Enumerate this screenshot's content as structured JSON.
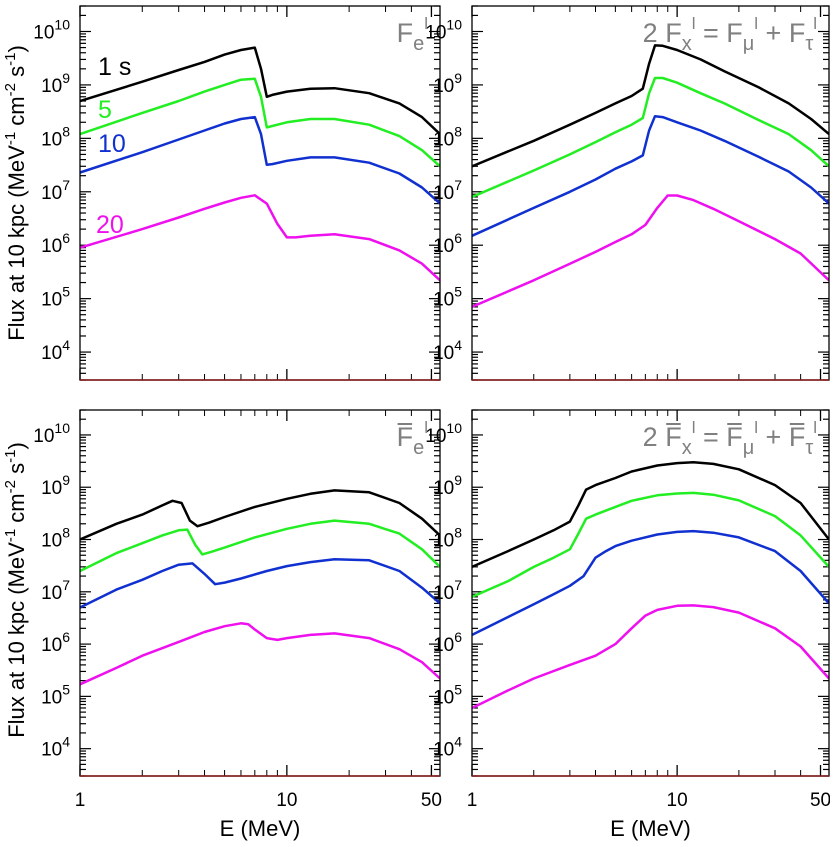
{
  "axes": {
    "ylabel_main": "Flux at 10 kpc (MeV",
    "ylabel_exp1": "-1",
    "ylabel_mid": " cm",
    "ylabel_exp2": "-2",
    "ylabel_s": " s",
    "ylabel_exp3": "-1",
    "ylabel_end": ")",
    "xlabel": "E (MeV)",
    "xticks": [
      "1",
      "10",
      "50"
    ],
    "ytick_base": "10",
    "ytick_exps": [
      "4",
      "5",
      "6",
      "7",
      "8",
      "9",
      "10"
    ]
  },
  "colors": {
    "1 s": "#000000",
    "5": "#22ee22",
    "10": "#1030d0",
    "20": "#ee10ee",
    "label_gray": "#808080",
    "baseline": "#8b1a1a"
  },
  "time_labels": [
    "1 s",
    "5",
    "10",
    "20"
  ],
  "chart_data": [
    {
      "type": "line",
      "panel": "top-left",
      "label_parts": [
        "F",
        "e",
        "l"
      ],
      "xscale": "log",
      "yscale": "log",
      "xlim": [
        1,
        55
      ],
      "ylim": [
        3000,
        30000000000
      ],
      "series": [
        {
          "name": "1 s",
          "x": [
            1,
            2,
            3,
            4,
            5,
            6,
            7,
            7.5,
            8,
            8.5,
            10,
            13,
            17,
            25,
            35,
            45,
            55
          ],
          "y": [
            500000000,
            1150000000,
            1900000000,
            2700000000,
            3700000000,
            4500000000,
            5000000000,
            2000000000,
            600000000,
            650000000,
            750000000,
            850000000,
            870000000,
            700000000,
            450000000,
            250000000,
            120000000
          ]
        },
        {
          "name": "5",
          "x": [
            1,
            2,
            3,
            4,
            5,
            6,
            7,
            7.5,
            8,
            8.5,
            10,
            13,
            17,
            25,
            35,
            45,
            55
          ],
          "y": [
            120000000,
            300000000,
            500000000,
            750000000,
            1000000000,
            1250000000,
            1300000000,
            600000000,
            160000000,
            170000000,
            200000000,
            230000000,
            230000000,
            180000000,
            110000000,
            60000000,
            30000000
          ]
        },
        {
          "name": "10",
          "x": [
            1,
            2,
            3,
            4,
            5,
            6,
            7,
            7.5,
            8,
            8.5,
            10,
            13,
            17,
            25,
            35,
            45,
            55
          ],
          "y": [
            23000000,
            55000000,
            95000000,
            140000000,
            190000000,
            230000000,
            250000000,
            120000000,
            32000000,
            33000000,
            38000000,
            44000000,
            44000000,
            35000000,
            22000000,
            12000000,
            6000000
          ]
        },
        {
          "name": "20",
          "x": [
            1,
            2,
            3,
            4,
            5,
            6,
            7,
            8,
            9,
            10,
            11,
            13,
            17,
            25,
            35,
            45,
            55
          ],
          "y": [
            900000,
            2000000,
            3300000,
            4800000,
            6300000,
            7700000,
            8600000,
            6000000,
            2500000,
            1400000,
            1400000,
            1500000,
            1600000,
            1300000,
            800000,
            450000,
            220000
          ]
        }
      ]
    },
    {
      "type": "line",
      "panel": "top-right",
      "label_parts": [
        "2 F",
        "x",
        "l",
        " = F",
        "μ",
        "l",
        " + F",
        "τ",
        "l"
      ],
      "xscale": "log",
      "yscale": "log",
      "xlim": [
        1,
        55
      ],
      "ylim": [
        3000,
        30000000000
      ],
      "series": [
        {
          "name": "1 s",
          "x": [
            1,
            2,
            3,
            4,
            5,
            6,
            6.8,
            7.3,
            7.8,
            8.5,
            10,
            13,
            17,
            25,
            35,
            45,
            55
          ],
          "y": [
            30000000,
            90000000,
            180000000,
            300000000,
            450000000,
            620000000,
            850000000,
            2500000000,
            5500000000,
            5400000000,
            4500000000,
            3000000000,
            1800000000,
            900000000,
            450000000,
            230000000,
            120000000
          ]
        },
        {
          "name": "5",
          "x": [
            1,
            2,
            3,
            4,
            5,
            6,
            6.8,
            7.3,
            7.8,
            8.5,
            10,
            13,
            17,
            25,
            35,
            45,
            55
          ],
          "y": [
            8000000,
            25000000,
            50000000,
            85000000,
            130000000,
            180000000,
            240000000,
            700000000,
            1350000000,
            1350000000,
            1100000000,
            700000000,
            450000000,
            220000000,
            120000000,
            60000000,
            30000000
          ]
        },
        {
          "name": "10",
          "x": [
            1,
            2,
            3,
            4,
            5,
            6,
            6.8,
            7.3,
            7.8,
            8.5,
            10,
            13,
            17,
            25,
            35,
            45,
            55
          ],
          "y": [
            1500000,
            5000000,
            10000000,
            17000000,
            27000000,
            37000000,
            48000000,
            140000000,
            260000000,
            250000000,
            200000000,
            140000000,
            90000000,
            45000000,
            24000000,
            12000000,
            6000000
          ]
        },
        {
          "name": "20",
          "x": [
            1,
            2,
            3,
            4,
            5,
            6,
            7,
            8,
            9,
            10,
            12,
            15,
            20,
            30,
            40,
            55
          ],
          "y": [
            70000,
            220000,
            450000,
            750000,
            1150000,
            1600000,
            2400000,
            5000000,
            8500000,
            8500000,
            7000000,
            4800000,
            2800000,
            1300000,
            700000,
            220000
          ]
        }
      ]
    },
    {
      "type": "line",
      "panel": "bottom-left",
      "label_parts": [
        "F",
        "e",
        "l"
      ],
      "label_bar": true,
      "xscale": "log",
      "yscale": "log",
      "xlim": [
        1,
        55
      ],
      "ylim": [
        3000,
        30000000000
      ],
      "series": [
        {
          "name": "1 s",
          "x": [
            1,
            1.5,
            2,
            2.5,
            2.8,
            3.1,
            3.4,
            3.7,
            4.2,
            5,
            7,
            10,
            13,
            17,
            25,
            35,
            45,
            55
          ],
          "y": [
            100000000,
            200000000,
            300000000,
            450000000,
            550000000,
            500000000,
            230000000,
            180000000,
            210000000,
            270000000,
            420000000,
            600000000,
            750000000,
            870000000,
            800000000,
            500000000,
            250000000,
            120000000
          ]
        },
        {
          "name": "5",
          "x": [
            1,
            1.5,
            2,
            2.5,
            3,
            3.3,
            3.6,
            3.9,
            4.3,
            5,
            7,
            10,
            13,
            17,
            25,
            35,
            45,
            55
          ],
          "y": [
            25000000,
            55000000,
            85000000,
            120000000,
            150000000,
            155000000,
            80000000,
            52000000,
            58000000,
            70000000,
            110000000,
            160000000,
            200000000,
            230000000,
            200000000,
            130000000,
            65000000,
            30000000
          ]
        },
        {
          "name": "10",
          "x": [
            1,
            1.5,
            2,
            2.5,
            3,
            3.5,
            4,
            4.5,
            5,
            6,
            8,
            10,
            13,
            17,
            25,
            35,
            45,
            55
          ],
          "y": [
            5000000,
            11000000,
            17000000,
            25000000,
            33000000,
            35000000,
            22000000,
            14000000,
            15000000,
            18000000,
            25000000,
            31000000,
            37000000,
            42000000,
            40000000,
            25000000,
            12000000,
            6000000
          ]
        },
        {
          "name": "20",
          "x": [
            1,
            1.5,
            2,
            3,
            4,
            5,
            6,
            6.5,
            7,
            8,
            9,
            10,
            13,
            17,
            25,
            35,
            45,
            55
          ],
          "y": [
            170000,
            350000,
            600000,
            1100000,
            1700000,
            2200000,
            2500000,
            2400000,
            1900000,
            1300000,
            1200000,
            1300000,
            1500000,
            1600000,
            1300000,
            800000,
            450000,
            220000
          ]
        }
      ]
    },
    {
      "type": "line",
      "panel": "bottom-right",
      "label_parts": [
        "2 F",
        "x",
        "l",
        " = F",
        "μ",
        "l",
        " + F",
        "τ",
        "l"
      ],
      "label_bar": true,
      "xscale": "log",
      "yscale": "log",
      "xlim": [
        1,
        55
      ],
      "ylim": [
        3000,
        30000000000
      ],
      "series": [
        {
          "name": "1 s",
          "x": [
            1,
            1.5,
            2,
            2.5,
            3,
            3.3,
            3.6,
            4,
            5,
            6,
            8,
            10,
            12,
            15,
            20,
            30,
            40,
            55
          ],
          "y": [
            30000000,
            60000000,
            100000000,
            150000000,
            220000000,
            450000000,
            900000000,
            1100000000,
            1500000000,
            2000000000,
            2600000000,
            2900000000,
            3000000000,
            2800000000,
            2200000000,
            1100000000,
            500000000,
            100000000
          ]
        },
        {
          "name": "5",
          "x": [
            1,
            1.5,
            2,
            2.5,
            3,
            3.3,
            3.6,
            4,
            5,
            6,
            8,
            10,
            12,
            15,
            20,
            30,
            40,
            55
          ],
          "y": [
            8000000,
            16000000,
            30000000,
            45000000,
            65000000,
            130000000,
            250000000,
            300000000,
            420000000,
            550000000,
            700000000,
            760000000,
            780000000,
            720000000,
            560000000,
            280000000,
            120000000,
            30000000
          ]
        },
        {
          "name": "10",
          "x": [
            1,
            1.5,
            2,
            2.5,
            3,
            3.5,
            4,
            4.5,
            5,
            6,
            8,
            10,
            12,
            15,
            20,
            30,
            40,
            55
          ],
          "y": [
            1500000,
            3300000,
            5800000,
            9000000,
            13000000,
            20000000,
            45000000,
            60000000,
            75000000,
            95000000,
            125000000,
            140000000,
            145000000,
            135000000,
            110000000,
            60000000,
            25000000,
            6000000
          ]
        },
        {
          "name": "20",
          "x": [
            1,
            1.5,
            2,
            3,
            4,
            5,
            6,
            7,
            8,
            10,
            12,
            15,
            20,
            30,
            40,
            55
          ],
          "y": [
            60000,
            130000,
            220000,
            400000,
            600000,
            1000000,
            2000000,
            3500000,
            4500000,
            5400000,
            5500000,
            5100000,
            4000000,
            2000000,
            900000,
            220000
          ]
        }
      ]
    }
  ]
}
